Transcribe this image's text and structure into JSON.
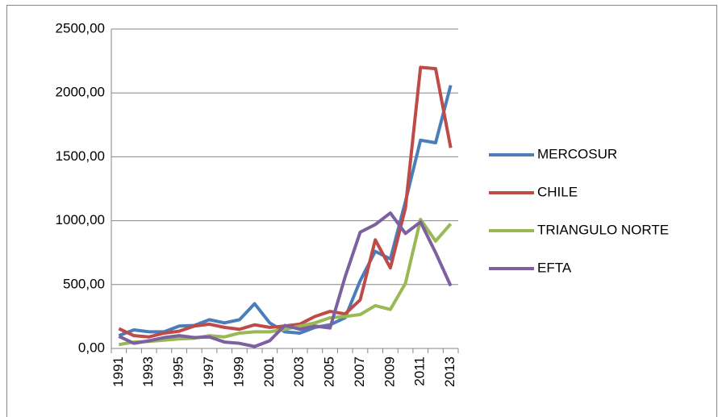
{
  "chart_data": {
    "type": "line",
    "categories": [
      "1991",
      null,
      "1993",
      null,
      "1995",
      null,
      "1997",
      null,
      "1999",
      null,
      "2001",
      null,
      "2003",
      null,
      "2005",
      null,
      "2007",
      null,
      "2009",
      null,
      "2011",
      null,
      "2013"
    ],
    "series": [
      {
        "name": "MERCOSUR",
        "color": "#4a7ebb",
        "values": [
          100,
          145,
          130,
          130,
          175,
          180,
          225,
          200,
          225,
          350,
          200,
          130,
          120,
          165,
          185,
          240,
          530,
          760,
          700,
          1150,
          1630,
          1610,
          2060
        ]
      },
      {
        "name": "CHILE",
        "color": "#be4b48",
        "values": [
          155,
          100,
          90,
          120,
          135,
          175,
          190,
          165,
          150,
          185,
          165,
          175,
          190,
          250,
          290,
          270,
          380,
          850,
          630,
          1100,
          2200,
          2190,
          1570
        ]
      },
      {
        "name": "TRIANGULO NORTE",
        "color": "#98b954",
        "values": [
          30,
          50,
          55,
          65,
          75,
          80,
          100,
          90,
          120,
          130,
          130,
          150,
          175,
          200,
          240,
          250,
          265,
          335,
          305,
          510,
          1010,
          840,
          975
        ]
      },
      {
        "name": "EFTA",
        "color": "#7d60a0",
        "values": [
          95,
          40,
          60,
          85,
          100,
          85,
          90,
          50,
          40,
          15,
          60,
          180,
          150,
          175,
          160,
          560,
          910,
          970,
          1060,
          900,
          990,
          750,
          490
        ]
      }
    ],
    "ylim": [
      0,
      2500
    ],
    "yticks": [
      {
        "value": 0,
        "label": "0,00"
      },
      {
        "value": 500,
        "label": "500,00"
      },
      {
        "value": 1000,
        "label": "1000,00"
      },
      {
        "value": 1500,
        "label": "1500,00"
      },
      {
        "value": 2000,
        "label": "2000,00"
      },
      {
        "value": 2500,
        "label": "2500,00"
      }
    ],
    "grid": true,
    "legend": "right"
  }
}
